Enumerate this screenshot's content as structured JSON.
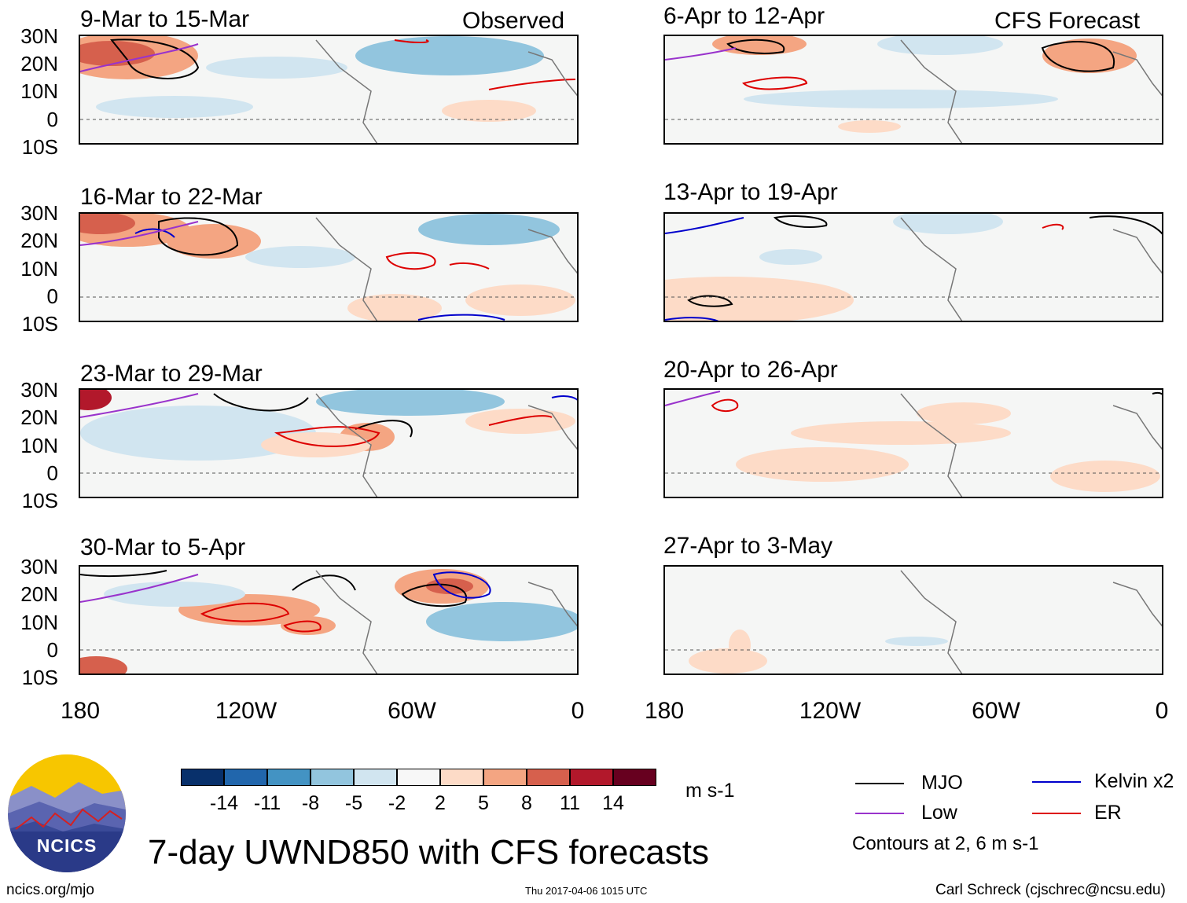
{
  "header": {
    "observed_label": "Observed",
    "forecast_label": "CFS Forecast"
  },
  "y_axis_labels": [
    "30N",
    "20N",
    "10N",
    "0",
    "10S"
  ],
  "x_axis_labels": [
    "180",
    "120W",
    "60W",
    "0"
  ],
  "panels_left": [
    {
      "title": "9-Mar to 15-Mar"
    },
    {
      "title": "16-Mar to 22-Mar"
    },
    {
      "title": "23-Mar to 29-Mar"
    },
    {
      "title": "30-Mar to 5-Apr"
    }
  ],
  "panels_right": [
    {
      "title": "6-Apr to 12-Apr"
    },
    {
      "title": "13-Apr to 19-Apr"
    },
    {
      "title": "20-Apr to 26-Apr"
    },
    {
      "title": "27-Apr to 3-May"
    }
  ],
  "colorbar": {
    "labels": [
      "-14",
      "-11",
      "-8",
      "-5",
      "-2",
      "2",
      "5",
      "8",
      "11",
      "14"
    ],
    "colors": [
      "#08306b",
      "#2166ac",
      "#4393c3",
      "#92c5de",
      "#d1e5f0",
      "#f7f7f7",
      "#fddbc7",
      "#f4a582",
      "#d6604d",
      "#b2182b",
      "#67001f"
    ],
    "units": "m s-1"
  },
  "title": "7-day UWND850 with CFS forecasts",
  "legend": {
    "items": [
      {
        "label": "MJO",
        "color": "#000000"
      },
      {
        "label": "Kelvin x2",
        "color": "#0000cc"
      },
      {
        "label": "Low",
        "color": "#9933cc"
      },
      {
        "label": "ER",
        "color": "#dd0000"
      }
    ],
    "note": "Contours at 2, 6 m s-1"
  },
  "logo": {
    "text": "NCICS"
  },
  "footer": {
    "left": "ncics.org/mjo",
    "middle": "Thu 2017-04-06 1015 UTC",
    "right": "Carl Schreck (cjschrec@ncsu.edu)"
  }
}
